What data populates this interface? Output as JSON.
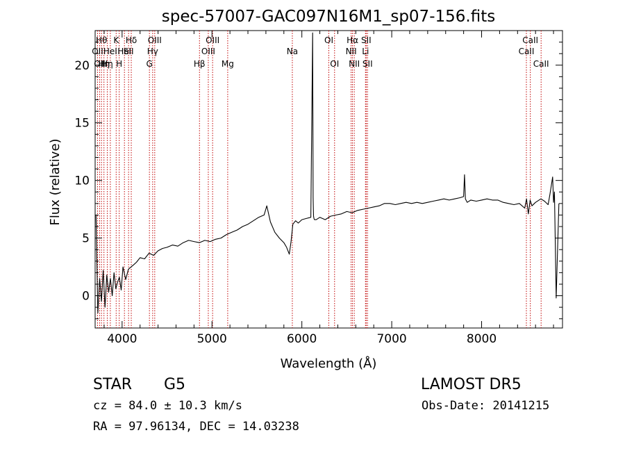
{
  "chart_data": {
    "type": "line",
    "title": "spec-57007-GAC097N16M1_sp07-156.fits",
    "xlabel": "Wavelength (Å)",
    "ylabel": "Flux (relative)",
    "xlim": [
      3700,
      8900
    ],
    "ylim": [
      -2.8,
      23
    ],
    "xticks": [
      4000,
      5000,
      6000,
      7000,
      8000
    ],
    "xtick_labels": [
      "4000",
      "5000",
      "6000",
      "7000",
      "8000"
    ],
    "yticks": [
      0,
      5,
      10,
      15,
      20
    ],
    "ytick_labels": [
      "0",
      "5",
      "10",
      "15",
      "20"
    ],
    "grid": false,
    "series": [
      {
        "x": [
          3710,
          3730,
          3750,
          3770,
          3790,
          3810,
          3830,
          3850,
          3870,
          3890,
          3910,
          3930,
          3950,
          3970,
          3990,
          4010,
          4040,
          4070,
          4100,
          4130,
          4160,
          4200,
          4250,
          4300,
          4350,
          4400,
          4450,
          4500,
          4560,
          4620,
          4680,
          4740,
          4800,
          4860,
          4920,
          4980,
          5040,
          5100,
          5160,
          5220,
          5280,
          5340,
          5400,
          5460,
          5520,
          5580,
          5610,
          5650,
          5700,
          5750,
          5800,
          5830,
          5860,
          5880,
          5900,
          5930,
          5960,
          6000,
          6050,
          6100,
          6120,
          6125,
          6130,
          6135,
          6140,
          6160,
          6200,
          6260,
          6320,
          6380,
          6440,
          6500,
          6560,
          6620,
          6680,
          6740,
          6800,
          6860,
          6920,
          6980,
          7040,
          7100,
          7160,
          7220,
          7280,
          7340,
          7400,
          7460,
          7520,
          7580,
          7640,
          7700,
          7760,
          7800,
          7810,
          7820,
          7840,
          7880,
          7940,
          8000,
          8060,
          8120,
          8180,
          8240,
          8300,
          8360,
          8420,
          8480,
          8500,
          8520,
          8540,
          8560,
          8600,
          8660,
          8700,
          8740,
          8760,
          8790,
          8800,
          8810,
          8830,
          8860
        ],
        "y": [
          7.0,
          -1.5,
          1.5,
          -0.5,
          2.2,
          -1.0,
          1.8,
          0.3,
          1.5,
          0.0,
          2.0,
          0.6,
          1.2,
          1.6,
          0.5,
          2.5,
          1.4,
          2.3,
          2.5,
          2.7,
          2.9,
          3.3,
          3.2,
          3.7,
          3.5,
          3.9,
          4.1,
          4.2,
          4.4,
          4.3,
          4.6,
          4.8,
          4.7,
          4.6,
          4.8,
          4.7,
          4.9,
          5.0,
          5.3,
          5.5,
          5.7,
          6.0,
          6.2,
          6.5,
          6.8,
          7.0,
          7.8,
          6.4,
          5.5,
          5.0,
          4.6,
          4.2,
          3.6,
          4.7,
          6.2,
          6.5,
          6.3,
          6.6,
          6.7,
          6.8,
          22.8,
          8.5,
          6.9,
          6.7,
          6.6,
          6.6,
          6.8,
          6.6,
          6.9,
          7.0,
          7.1,
          7.3,
          7.2,
          7.4,
          7.5,
          7.6,
          7.7,
          7.8,
          8.0,
          8.0,
          7.9,
          8.0,
          8.1,
          8.0,
          8.1,
          8.0,
          8.1,
          8.2,
          8.3,
          8.4,
          8.3,
          8.4,
          8.5,
          8.6,
          10.5,
          8.4,
          8.1,
          8.3,
          8.2,
          8.3,
          8.4,
          8.3,
          8.3,
          8.1,
          8.0,
          7.9,
          8.0,
          7.6,
          8.4,
          7.1,
          8.3,
          7.8,
          8.1,
          8.4,
          8.2,
          7.9,
          8.8,
          10.3,
          8.1,
          9.0,
          -0.2,
          8.0
        ]
      }
    ],
    "lines": [
      {
        "w": 3727,
        "label": "OII",
        "row": 1
      },
      {
        "w": 3750,
        "label": "OII",
        "row": 2
      },
      {
        "w": 3771,
        "label": "Hθ",
        "row": 0
      },
      {
        "w": 3798,
        "label": "Hη",
        "row": 2
      },
      {
        "w": 3835,
        "label": "Hη",
        "row": 2
      },
      {
        "w": 3869,
        "label": "HeI",
        "row": 1
      },
      {
        "w": 3934,
        "label": "K",
        "row": 0
      },
      {
        "w": 3968,
        "label": "H",
        "row": 2
      },
      {
        "w": 4026,
        "label": "HeI",
        "row": 1
      },
      {
        "w": 4072,
        "label": "SII",
        "row": 1
      },
      {
        "w": 4102,
        "label": "Hδ",
        "row": 0
      },
      {
        "w": 4304,
        "label": "G",
        "row": 2
      },
      {
        "w": 4340,
        "label": "Hγ",
        "row": 1
      },
      {
        "w": 4363,
        "label": "OIII",
        "row": 0
      },
      {
        "w": 4861,
        "label": "Hβ",
        "row": 2
      },
      {
        "w": 4959,
        "label": "OIII",
        "row": 1
      },
      {
        "w": 5007,
        "label": "OIII",
        "row": 0
      },
      {
        "w": 5175,
        "label": "Mg",
        "row": 2
      },
      {
        "w": 5894,
        "label": "Na",
        "row": 1
      },
      {
        "w": 6300,
        "label": "OI",
        "row": 0
      },
      {
        "w": 6364,
        "label": "OI",
        "row": 2
      },
      {
        "w": 6548,
        "label": "NII",
        "row": 1
      },
      {
        "w": 6563,
        "label": "Hα",
        "row": 0
      },
      {
        "w": 6583,
        "label": "NII",
        "row": 2
      },
      {
        "w": 6708,
        "label": "Li",
        "row": 1
      },
      {
        "w": 6716,
        "label": "SII",
        "row": 0
      },
      {
        "w": 6731,
        "label": "SII",
        "row": 2
      },
      {
        "w": 8498,
        "label": "CaII",
        "row": 1
      },
      {
        "w": 8542,
        "label": "CaII",
        "row": 0
      },
      {
        "w": 8662,
        "label": "CaII",
        "row": 2
      }
    ],
    "colors": {
      "spectrum": "#000000",
      "line_markers": "#c00000",
      "axes": "#000000"
    }
  },
  "info": {
    "class_label": "STAR",
    "subclass_label": "G5",
    "survey": "LAMOST  DR5",
    "cz": "cz = 84.0 ± 10.3 km/s",
    "obs_date": "Obs-Date: 20141215",
    "radec": "RA =  97.96134, DEC =  14.03238"
  }
}
